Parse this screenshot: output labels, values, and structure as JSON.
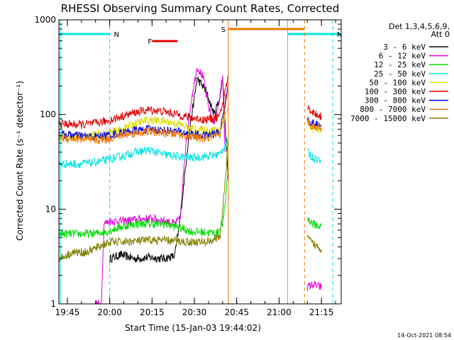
{
  "chart_data": {
    "type": "line",
    "title": "RHESSI Observing Summary Count Rates, Corrected",
    "xlabel": "Start Time (15-Jan-03 19:44:02)",
    "ylabel": "Corrected Count Rate (s⁻¹ detector⁻¹)",
    "yscale": "log",
    "ylim": [
      1,
      1000
    ],
    "xlim": [
      -2,
      98
    ],
    "x_unit": "minutes since 19:44:02",
    "xticks": [
      {
        "x": 1,
        "label": "19:45"
      },
      {
        "x": 16,
        "label": "20:00"
      },
      {
        "x": 31,
        "label": "20:15"
      },
      {
        "x": 46,
        "label": "20:30"
      },
      {
        "x": 61,
        "label": "20:45"
      },
      {
        "x": 76,
        "label": "21:00"
      },
      {
        "x": 91,
        "label": "21:15"
      }
    ],
    "yticks": [
      {
        "y": 1,
        "label": "1"
      },
      {
        "y": 10,
        "label": "10"
      },
      {
        "y": 100,
        "label": "100"
      },
      {
        "y": 1000,
        "label": "1000"
      }
    ],
    "detectors": "Det 1,3,4,5,6,9,",
    "attenuator": "Att 0",
    "footer_timestamp": "14-Oct-2021 08:54",
    "markers": [
      {
        "label": "N",
        "color": "#00e5e5",
        "x0": -2,
        "x1": 16,
        "dash_end": 16,
        "solid_start": -1.5
      },
      {
        "label": "N",
        "color": "#00e5e5",
        "x0": 79,
        "x1": 98,
        "dash_end": 95,
        "solid_start": 79
      },
      {
        "label": "F",
        "color": "#e00000",
        "x0": 31,
        "x1": 40
      },
      {
        "label": "S",
        "color": "#f07800",
        "x0": 58,
        "x1": 85,
        "dash_end": 85,
        "solid_start": 58
      }
    ],
    "series": [
      {
        "name": "3 - 6 keV",
        "color": "#000000",
        "x": [
          16,
          20,
          25,
          30,
          35,
          39,
          41,
          44,
          47,
          50,
          53,
          55,
          56,
          58
        ],
        "values": [
          3,
          3.3,
          3,
          3.1,
          3,
          3.2,
          8,
          60,
          240,
          180,
          100,
          150,
          250,
          20
        ]
      },
      {
        "name": "6 - 12 keV",
        "color": "#e000e0",
        "x": [
          11,
          13,
          14,
          16,
          21,
          26,
          31,
          36,
          39,
          41,
          43,
          45,
          47,
          49,
          51,
          53,
          55,
          56,
          57,
          86,
          88,
          91
        ],
        "values": [
          1,
          1,
          7,
          7.5,
          7.5,
          7.8,
          8,
          7.5,
          7,
          8,
          50,
          150,
          320,
          250,
          120,
          80,
          150,
          250,
          30,
          1.5,
          1.6,
          1.5
        ]
      },
      {
        "name": "12 - 25 keV",
        "color": "#00dd00",
        "x": [
          -2,
          5,
          10,
          15,
          20,
          25,
          30,
          35,
          40,
          45,
          50,
          54,
          56,
          57,
          58,
          86,
          88,
          91
        ],
        "values": [
          5.5,
          5.5,
          5.5,
          5.8,
          6.5,
          7,
          7,
          7,
          6.5,
          5.8,
          5.7,
          5.6,
          7,
          12,
          30,
          8,
          7,
          6.5
        ]
      },
      {
        "name": "25 - 50 keV",
        "color": "#00e5e5",
        "x": [
          -2,
          5,
          10,
          15,
          20,
          25,
          30,
          35,
          40,
          45,
          50,
          55,
          58,
          86,
          88,
          91
        ],
        "values": [
          30,
          30,
          31,
          33,
          36,
          40,
          42,
          38,
          36,
          35,
          36,
          38,
          55,
          40,
          35,
          33
        ]
      },
      {
        "name": "50 - 100 keV",
        "color": "#dddd00",
        "x": [
          -2,
          5,
          10,
          15,
          20,
          25,
          30,
          35,
          40,
          45,
          50,
          55,
          58,
          86,
          88,
          91
        ],
        "values": [
          60,
          58,
          60,
          63,
          70,
          80,
          88,
          85,
          80,
          70,
          68,
          70,
          120,
          80,
          72,
          68
        ]
      },
      {
        "name": "100 - 300 keV",
        "color": "#e00000",
        "x": [
          -2,
          5,
          10,
          15,
          20,
          25,
          30,
          35,
          40,
          45,
          50,
          55,
          58,
          86,
          88,
          91
        ],
        "values": [
          80,
          78,
          80,
          85,
          95,
          105,
          112,
          108,
          100,
          92,
          88,
          95,
          250,
          120,
          105,
          95
        ]
      },
      {
        "name": "300 - 800 keV",
        "color": "#0000e0",
        "x": [
          -2,
          5,
          10,
          15,
          20,
          25,
          30,
          35,
          40,
          45,
          50,
          55,
          58,
          86,
          88,
          91
        ],
        "values": [
          62,
          60,
          58,
          60,
          64,
          68,
          70,
          68,
          66,
          62,
          60,
          65,
          200,
          90,
          80,
          75
        ]
      },
      {
        "name": "800 - 7000 keV",
        "color": "#f07800",
        "x": [
          -2,
          5,
          10,
          15,
          20,
          25,
          30,
          35,
          40,
          45,
          50,
          55,
          58,
          86,
          88,
          91
        ],
        "values": [
          57,
          55,
          53,
          55,
          60,
          64,
          66,
          64,
          62,
          58,
          55,
          60,
          180,
          85,
          75,
          72
        ]
      },
      {
        "name": "7000 - 15000 keV",
        "color": "#808000",
        "x": [
          -2,
          3,
          8,
          12,
          16,
          20,
          25,
          30,
          35,
          40,
          45,
          50,
          55,
          57,
          58,
          86,
          88,
          91
        ],
        "values": [
          3,
          3.5,
          3.5,
          4,
          4.5,
          4.5,
          4.6,
          4.7,
          4.7,
          4.6,
          4.5,
          4.5,
          5,
          20,
          60,
          5,
          4.3,
          3.8
        ]
      }
    ]
  }
}
